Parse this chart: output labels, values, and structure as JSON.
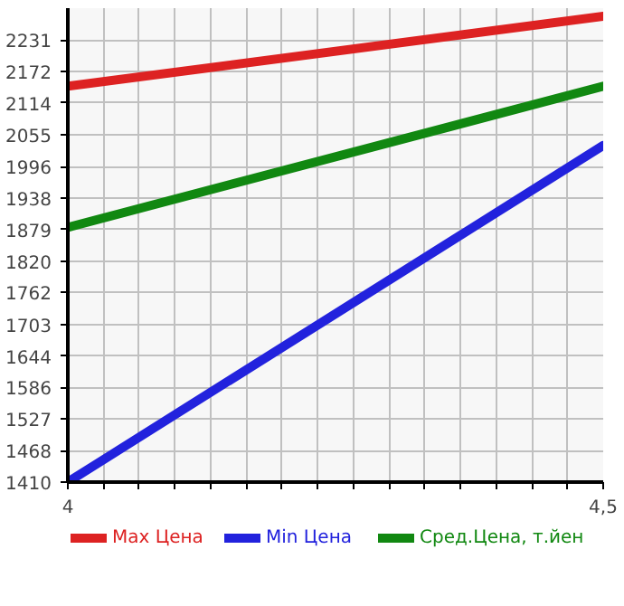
{
  "chart_data": {
    "type": "line",
    "x": [
      4,
      4.5
    ],
    "xlim": [
      4,
      4.5
    ],
    "ylim": [
      1410,
      2290
    ],
    "xticks": [
      4,
      {
        "value": 4.0333,
        "label": null
      },
      {
        "value": 4.0667,
        "label": null
      },
      {
        "value": 4.1,
        "label": null
      },
      {
        "value": 4.1333,
        "label": null
      },
      {
        "value": 4.1667,
        "label": null
      },
      {
        "value": 4.2,
        "label": null
      },
      {
        "value": 4.2333,
        "label": null
      },
      {
        "value": 4.2667,
        "label": null
      },
      {
        "value": 4.3,
        "label": null
      },
      {
        "value": 4.3333,
        "label": null
      },
      {
        "value": 4.3667,
        "label": null
      },
      {
        "value": 4.4,
        "label": null
      },
      {
        "value": 4.4333,
        "label": null
      },
      {
        "value": 4.4667,
        "label": null
      },
      {
        "value": 4.5,
        "label": "4,5"
      }
    ],
    "yticks": [
      1410,
      1468,
      1527,
      1586,
      1644,
      1703,
      1762,
      1820,
      1879,
      1938,
      1996,
      2055,
      2114,
      2172,
      2231
    ],
    "series": [
      {
        "name": "Max Цена",
        "color": "#dd2222",
        "values": [
          2145,
          2275
        ]
      },
      {
        "name": "Min Цена",
        "color": "#2222dd",
        "values": [
          1410,
          2035
        ]
      },
      {
        "name": "Сред.Цена, т.йен",
        "color": "#118811",
        "values": [
          1883,
          2145
        ]
      }
    ],
    "grid": true,
    "legend": "bottom",
    "marker": "none",
    "line_style": "solid"
  }
}
